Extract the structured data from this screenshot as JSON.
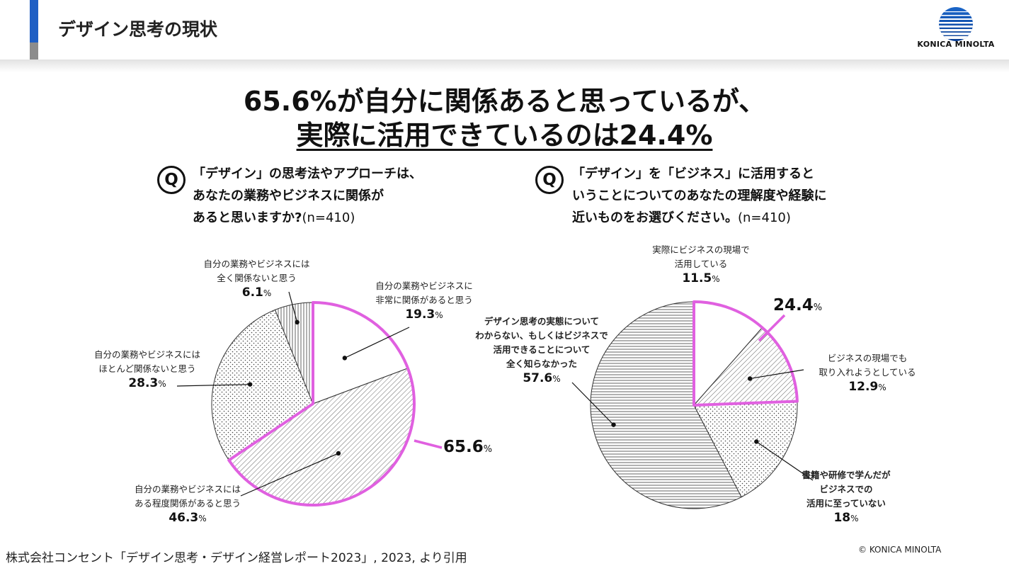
{
  "header": {
    "title": "デザイン思考の現状",
    "logo_text": "KONICA MINOLTA"
  },
  "headline": {
    "line1": "65.6%が自分に関係あると思っているが、",
    "line2": "実際に活用できているのは24.4%"
  },
  "question_left": {
    "icon": "Q",
    "line1": "「デザイン」の思考法やアプローチは、",
    "line2": "あなたの業務やビジネスに関係が",
    "line3": "あると思いますか?",
    "n": "(n=410)"
  },
  "question_right": {
    "icon": "Q",
    "line1": "「デザイン」を「ビジネス」に活用すると",
    "line2": "いうことについてのあなたの理解度や経験に",
    "line3": "近いものをお選びください。",
    "n": "(n=410)"
  },
  "chart_data": [
    {
      "type": "pie",
      "slices": [
        {
          "label": "自分の業務やビジネスに非常に関係があると思う",
          "label_lines": [
            "自分の業務やビジネスに",
            "非常に関係があると思う"
          ],
          "value": 19.3,
          "pattern": "blank"
        },
        {
          "label": "自分の業務やビジネスにある程度関係があると思う",
          "label_lines": [
            "自分の業務やビジネスには",
            "ある程度関係があると思う"
          ],
          "value": 46.3,
          "pattern": "diagonal"
        },
        {
          "label": "自分の業務やビジネスにはほとんど関係ないと思う",
          "label_lines": [
            "自分の業務やビジネスには",
            "ほとんど関係ないと思う"
          ],
          "value": 28.3,
          "pattern": "dots"
        },
        {
          "label": "自分の業務やビジネスには全く関係ないと思う",
          "label_lines": [
            "自分の業務やビジネスには",
            "全く関係ないと思う"
          ],
          "value": 6.1,
          "pattern": "vertical"
        }
      ],
      "highlight": {
        "value": 65.6,
        "slices": [
          0,
          1
        ],
        "color": "#e060e0"
      },
      "unit": "%"
    },
    {
      "type": "pie",
      "slices": [
        {
          "label": "実際にビジネスの現場で活用している",
          "label_lines": [
            "実際にビジネスの現場で",
            "活用している"
          ],
          "value": 11.5,
          "pattern": "blank"
        },
        {
          "label": "ビジネスの現場でも取り入れようとしている",
          "label_lines": [
            "ビジネスの現場でも",
            "取り入れようとしている"
          ],
          "value": 12.9,
          "pattern": "diagonal"
        },
        {
          "label": "書籍や研修で学んだがビジネスでの活用に至っていない",
          "label_lines": [
            "書籍や研修で学んだが",
            "ビジネスでの",
            "活用に至っていない"
          ],
          "value": 18.0,
          "pattern": "dots"
        },
        {
          "label": "デザイン思考の実態についてわからない、もしくはビジネスで活用できることについて全く知らなかった",
          "label_lines": [
            "デザイン思考の実態について",
            "わからない、もしくはビジネスで",
            "活用できることについて",
            "全く知らなかった"
          ],
          "value": 57.6,
          "pattern": "horizontal"
        }
      ],
      "highlight": {
        "value": 24.4,
        "slices": [
          0,
          1
        ],
        "color": "#e060e0"
      },
      "unit": "%"
    }
  ],
  "footer": {
    "source": "株式会社コンセント「デザイン思考・デザイン経営レポート2023」, 2023, より引用",
    "copyright": "© KONICA MINOLTA"
  }
}
